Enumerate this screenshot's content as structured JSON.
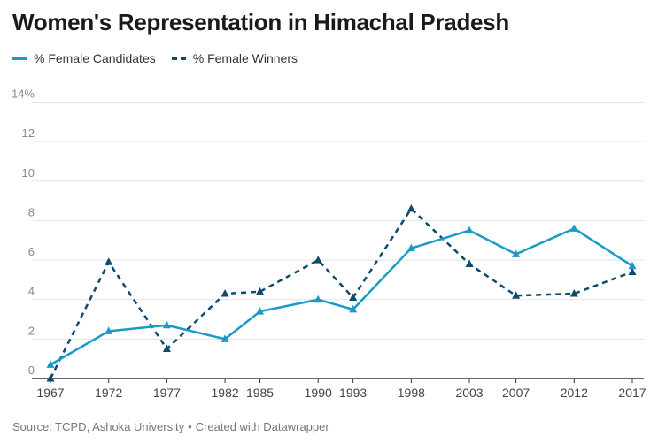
{
  "title": "Women's Representation in Himachal Pradesh",
  "legend": {
    "candidates_label": "% Female Candidates",
    "winners_label": "% Female Winners"
  },
  "source": {
    "text": "Source: TCPD, Ashoka University",
    "separator": "•",
    "created": "Created with Datawrapper"
  },
  "colors": {
    "candidates": "#1a9bc7",
    "winners": "#0e4a6e",
    "grid": "#e3e3e3",
    "axis": "#333333",
    "tick_text": "#888888"
  },
  "chart_data": {
    "type": "line",
    "title": "Women's Representation in Himachal Pradesh",
    "x": [
      1967,
      1972,
      1977,
      1982,
      1985,
      1990,
      1993,
      1998,
      2003,
      2007,
      2012,
      2017
    ],
    "x_tick_labels": [
      "1967",
      "1972",
      "1977",
      "1982",
      "1985",
      "1990",
      "1993",
      "1998",
      "2003",
      "2007",
      "2012",
      "2017"
    ],
    "ylim": [
      0,
      14
    ],
    "y_ticks": [
      0,
      2,
      4,
      6,
      8,
      10,
      12,
      14
    ],
    "y_tick_labels": [
      "0",
      "2",
      "4",
      "6",
      "8",
      "10",
      "12",
      "14%"
    ],
    "grid": true,
    "legend_position": "top-left",
    "series": [
      {
        "name": "% Female Candidates",
        "style": "solid",
        "values": [
          0.7,
          2.4,
          2.7,
          2.0,
          3.4,
          4.0,
          3.5,
          6.6,
          7.5,
          6.3,
          7.6,
          5.7
        ]
      },
      {
        "name": "% Female Winners",
        "style": "dashed",
        "values": [
          0.0,
          5.9,
          1.5,
          4.3,
          4.4,
          6.0,
          4.1,
          8.6,
          5.8,
          4.2,
          4.3,
          5.4
        ]
      }
    ]
  }
}
